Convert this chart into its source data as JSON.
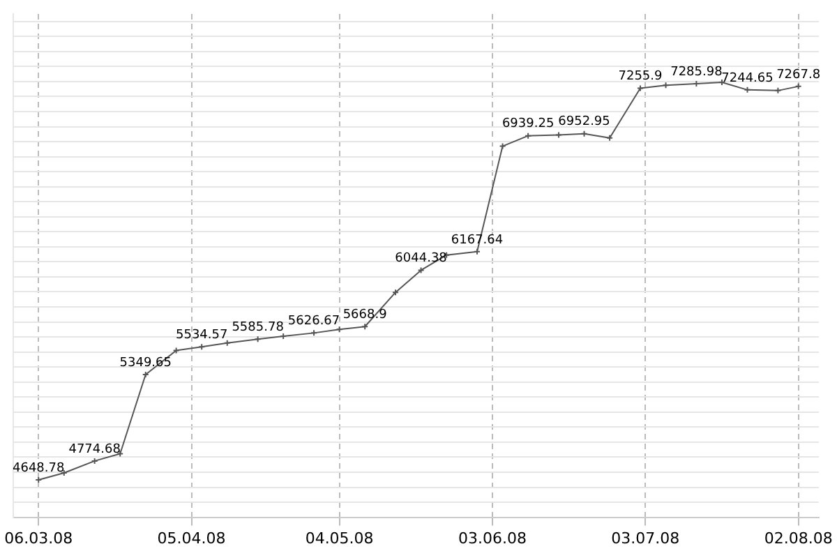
{
  "chart_data": {
    "type": "line",
    "x": [
      "2008-03-06",
      "2008-03-11",
      "2008-03-17",
      "2008-03-22",
      "2008-03-27",
      "2008-04-02",
      "2008-04-07",
      "2008-04-12",
      "2008-04-18",
      "2008-04-23",
      "2008-04-29",
      "2008-05-04",
      "2008-05-09",
      "2008-05-15",
      "2008-05-20",
      "2008-05-25",
      "2008-05-31",
      "2008-06-05",
      "2008-06-10",
      "2008-06-16",
      "2008-06-21",
      "2008-06-26",
      "2008-07-02",
      "2008-07-07",
      "2008-07-13",
      "2008-07-18",
      "2008-07-23",
      "2008-07-29",
      "2008-08-02"
    ],
    "series": [
      {
        "color": "#555555",
        "values": [
          4648.78,
          4695,
          4774.68,
          4823,
          5349.65,
          5510,
          5534.57,
          5560,
          5585.78,
          5605,
          5626.67,
          5650,
          5668.9,
          5897,
          6044.38,
          6145,
          6167.64,
          6870,
          6939.25,
          6945,
          6952.95,
          6925,
          7255.9,
          7275,
          7285.98,
          7295,
          7244.65,
          7240,
          7267.8
        ],
        "value_labels": [
          "4648.78",
          null,
          "4774.68",
          null,
          "5349.65",
          null,
          "5534.57",
          null,
          "5585.78",
          null,
          "5626.67",
          null,
          "5668.9",
          null,
          "6044.38",
          null,
          "6167.64",
          null,
          "6939.25",
          null,
          "6952.95",
          null,
          "7255.9",
          null,
          "7285.98",
          null,
          "7244.65",
          null,
          "7267.8"
        ]
      }
    ],
    "xlim": [
      "2008-03-01",
      "2008-08-06"
    ],
    "xticks": [
      {
        "value": "2008-03-06",
        "label": "06.03.08"
      },
      {
        "value": "2008-04-05",
        "label": "05.04.08"
      },
      {
        "value": "2008-05-04",
        "label": "04.05.08"
      },
      {
        "value": "2008-06-03",
        "label": "03.06.08"
      },
      {
        "value": "2008-07-03",
        "label": "03.07.08"
      },
      {
        "value": "2008-08-02",
        "label": "02.08.08"
      }
    ],
    "ylim": [
      4400,
      7750
    ],
    "yticks": [
      {
        "value": 4500,
        "label": null
      },
      {
        "value": 4600,
        "label": null
      },
      {
        "value": 4700,
        "label": null
      },
      {
        "value": 4800,
        "label": null
      },
      {
        "value": 4900,
        "label": null
      },
      {
        "value": 5000,
        "label": null
      },
      {
        "value": 5100,
        "label": null
      },
      {
        "value": 5200,
        "label": null
      },
      {
        "value": 5300,
        "label": null
      },
      {
        "value": 5400,
        "label": null
      },
      {
        "value": 5500,
        "label": null
      },
      {
        "value": 5600,
        "label": null
      },
      {
        "value": 5700,
        "label": null
      },
      {
        "value": 5800,
        "label": null
      },
      {
        "value": 5900,
        "label": null
      },
      {
        "value": 6000,
        "label": null
      },
      {
        "value": 6100,
        "label": null
      },
      {
        "value": 6200,
        "label": null
      },
      {
        "value": 6300,
        "label": null
      },
      {
        "value": 6400,
        "label": null
      },
      {
        "value": 6500,
        "label": null
      },
      {
        "value": 6600,
        "label": null
      },
      {
        "value": 6700,
        "label": null
      },
      {
        "value": 6800,
        "label": null
      },
      {
        "value": 6900,
        "label": null
      },
      {
        "value": 7000,
        "label": null
      },
      {
        "value": 7100,
        "label": null
      },
      {
        "value": 7200,
        "label": null
      },
      {
        "value": 7300,
        "label": null
      },
      {
        "value": 7400,
        "label": null
      },
      {
        "value": 7500,
        "label": null
      },
      {
        "value": 7600,
        "label": null
      },
      {
        "value": 7700,
        "label": null
      }
    ],
    "tick_labels": "x",
    "grid": true,
    "legend": false,
    "marker": "cross",
    "line_style": "solid"
  }
}
